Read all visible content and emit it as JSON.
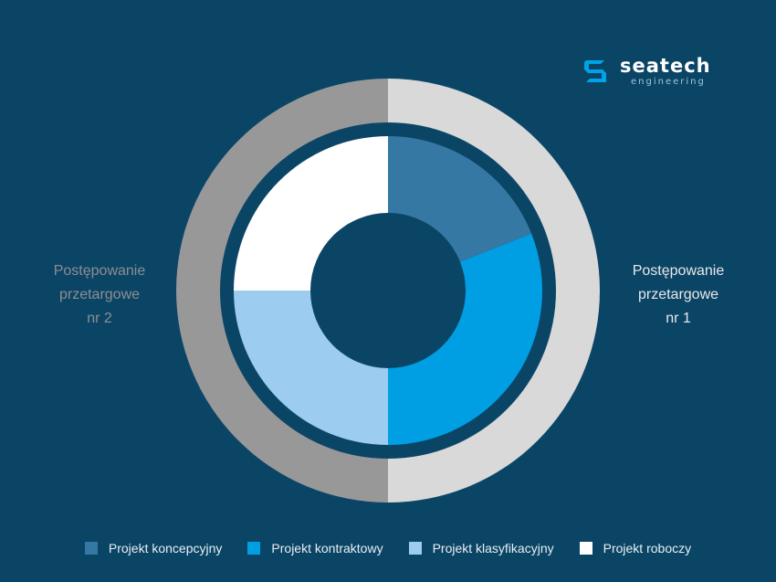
{
  "logo": {
    "name": "seatech",
    "sub": "engineering"
  },
  "labels": {
    "left": "Postępowanie\nprzetargowe\nnr 2",
    "right": "Postępowanie\nprzetargowe\nnr 1"
  },
  "colors": {
    "background": "#0b4566",
    "outer_left": "#989898",
    "outer_right": "#d9d9da",
    "koncepcyjny": "#3478a3",
    "kontraktowy": "#009fe3",
    "klasyfikacyjny": "#9ccdf1",
    "roboczy": "#ffffff"
  },
  "chart_data": {
    "type": "pie",
    "outer_ring": [
      {
        "name": "Postępowanie przetargowe nr 1",
        "value": 50,
        "color": "#d9d9da"
      },
      {
        "name": "Postępowanie przetargowe nr 2",
        "value": 50,
        "color": "#989898"
      }
    ],
    "inner_ring": [
      {
        "name": "Projekt koncepcyjny",
        "value": 19,
        "color": "#3478a3"
      },
      {
        "name": "Projekt kontraktowy",
        "value": 31,
        "color": "#009fe3"
      },
      {
        "name": "Projekt klasyfikacyjny",
        "value": 25,
        "color": "#9ccdf1"
      },
      {
        "name": "Projekt roboczy",
        "value": 25,
        "color": "#ffffff"
      }
    ],
    "legend": [
      "Projekt koncepcyjny",
      "Projekt kontraktowy",
      "Projekt klasyfikacyjny",
      "Projekt roboczy"
    ],
    "legend_position": "bottom"
  }
}
